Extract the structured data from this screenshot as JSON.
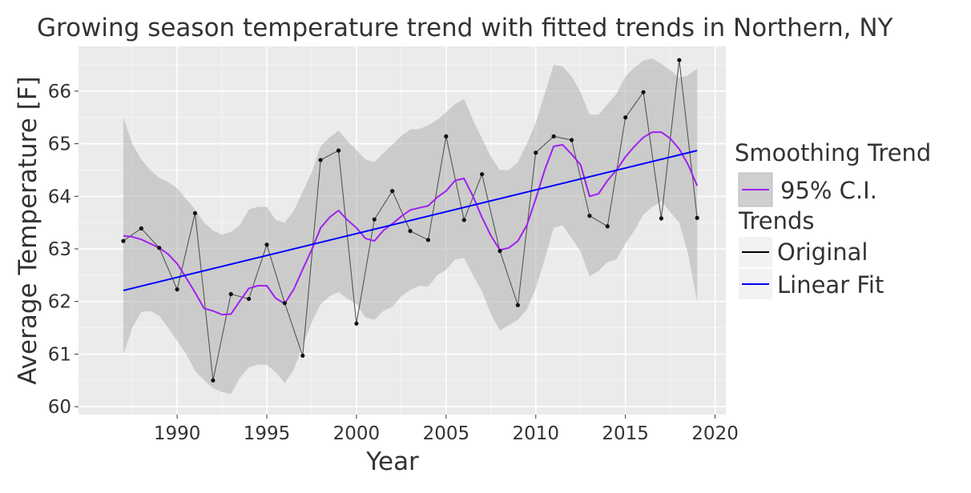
{
  "chart_data": {
    "type": "line",
    "title": "Growing season temperature trend with fitted trends in Northern, NY",
    "xlabel": "Year",
    "ylabel": "Average Temperature [F]",
    "xlim": [
      1984.5,
      2020.6
    ],
    "ylim": [
      59.85,
      66.85
    ],
    "x_ticks": [
      1990,
      1995,
      2000,
      2005,
      2010,
      2015,
      2020
    ],
    "y_ticks": [
      60,
      61,
      62,
      63,
      64,
      65,
      66
    ],
    "grid": true,
    "legend_position": "right",
    "colors": {
      "panel": "#ebebeb",
      "grid_major": "#ffffff",
      "band": "#b0b0b0",
      "original": "#000000",
      "smooth": "#a020f0",
      "linear": "#0000ff"
    },
    "x": [
      1987,
      1988,
      1989,
      1990,
      1991,
      1992,
      1993,
      1994,
      1995,
      1996,
      1997,
      1998,
      1999,
      2000,
      2001,
      2002,
      2003,
      2004,
      2005,
      2006,
      2007,
      2008,
      2009,
      2010,
      2011,
      2012,
      2013,
      2014,
      2015,
      2016,
      2017,
      2018,
      2019
    ],
    "series": [
      {
        "name": "Original",
        "values": [
          63.15,
          63.39,
          63.02,
          62.23,
          63.68,
          60.5,
          62.14,
          62.05,
          63.08,
          61.97,
          60.97,
          64.69,
          64.87,
          61.58,
          63.56,
          64.1,
          63.34,
          63.17,
          65.14,
          63.55,
          64.42,
          62.96,
          61.93,
          64.83,
          65.14,
          65.07,
          63.63,
          63.43,
          65.5,
          65.98,
          63.58,
          66.59,
          63.59
        ]
      },
      {
        "name": "95% C.I.",
        "x": [
          1987,
          1987.5,
          1988,
          1988.5,
          1989,
          1989.5,
          1990,
          1990.5,
          1991,
          1991.5,
          1992,
          1992.5,
          1993,
          1993.5,
          1994,
          1994.5,
          1995,
          1995.5,
          1996,
          1996.5,
          1997,
          1997.5,
          1998,
          1998.5,
          1999,
          1999.5,
          2000,
          2000.5,
          2001,
          2001.5,
          2002,
          2002.5,
          2003,
          2003.5,
          2004,
          2004.5,
          2005,
          2005.5,
          2006,
          2006.5,
          2007,
          2007.5,
          2008,
          2008.5,
          2009,
          2009.5,
          2010,
          2010.5,
          2011,
          2011.5,
          2012,
          2012.5,
          2013,
          2013.5,
          2014,
          2014.5,
          2015,
          2015.5,
          2016,
          2016.5,
          2017,
          2017.5,
          2018,
          2018.5,
          2019
        ],
        "values": [
          63.25,
          63.23,
          63.18,
          63.1,
          63.02,
          62.9,
          62.72,
          62.45,
          62.17,
          61.87,
          61.82,
          61.75,
          61.76,
          62.01,
          62.25,
          62.3,
          62.3,
          62.06,
          61.96,
          62.23,
          62.61,
          62.98,
          63.4,
          63.6,
          63.73,
          63.55,
          63.4,
          63.2,
          63.15,
          63.35,
          63.48,
          63.62,
          63.74,
          63.78,
          63.82,
          63.98,
          64.1,
          64.3,
          64.34,
          64.0,
          63.6,
          63.25,
          62.98,
          63.02,
          63.15,
          63.45,
          63.95,
          64.5,
          64.95,
          64.98,
          64.8,
          64.6,
          64.0,
          64.05,
          64.3,
          64.5,
          64.75,
          64.95,
          65.12,
          65.22,
          65.22,
          65.1,
          64.9,
          64.6,
          64.2
        ],
        "lower": [
          61.0,
          61.5,
          61.8,
          61.82,
          61.73,
          61.5,
          61.25,
          61.0,
          60.68,
          60.5,
          60.35,
          60.28,
          60.24,
          60.55,
          60.75,
          60.8,
          60.8,
          60.65,
          60.45,
          60.7,
          61.15,
          61.6,
          61.95,
          62.1,
          62.18,
          62.05,
          61.95,
          61.7,
          61.65,
          61.82,
          61.9,
          62.1,
          62.22,
          62.3,
          62.28,
          62.5,
          62.6,
          62.8,
          62.83,
          62.5,
          62.2,
          61.75,
          61.45,
          61.55,
          61.65,
          61.85,
          62.25,
          62.8,
          63.4,
          63.45,
          63.2,
          62.95,
          62.48,
          62.58,
          62.75,
          62.8,
          63.1,
          63.35,
          63.65,
          63.8,
          63.9,
          63.7,
          63.5,
          62.9,
          62.0
        ],
        "upper": [
          65.5,
          65.0,
          64.7,
          64.5,
          64.35,
          64.27,
          64.15,
          63.95,
          63.75,
          63.5,
          63.35,
          63.27,
          63.32,
          63.45,
          63.75,
          63.8,
          63.8,
          63.55,
          63.5,
          63.72,
          64.08,
          64.45,
          64.95,
          65.12,
          65.25,
          65.05,
          64.88,
          64.7,
          64.65,
          64.82,
          64.98,
          65.15,
          65.27,
          65.28,
          65.35,
          65.45,
          65.6,
          65.75,
          65.85,
          65.45,
          65.1,
          64.75,
          64.5,
          64.5,
          64.65,
          65.0,
          65.4,
          65.95,
          66.5,
          66.47,
          66.28,
          65.98,
          65.55,
          65.55,
          65.75,
          65.95,
          66.28,
          66.45,
          66.58,
          66.62,
          66.52,
          66.4,
          66.25,
          66.3,
          66.43
        ]
      },
      {
        "name": "Linear Fit",
        "x": [
          1987,
          2019
        ],
        "values": [
          62.21,
          64.87
        ]
      }
    ],
    "legend": {
      "smoothing_title": "Smoothing Trend",
      "smoothing_label": "95% C.I.",
      "trends_title": "Trends",
      "original_label": "Original",
      "linear_label": "Linear Fit"
    }
  }
}
